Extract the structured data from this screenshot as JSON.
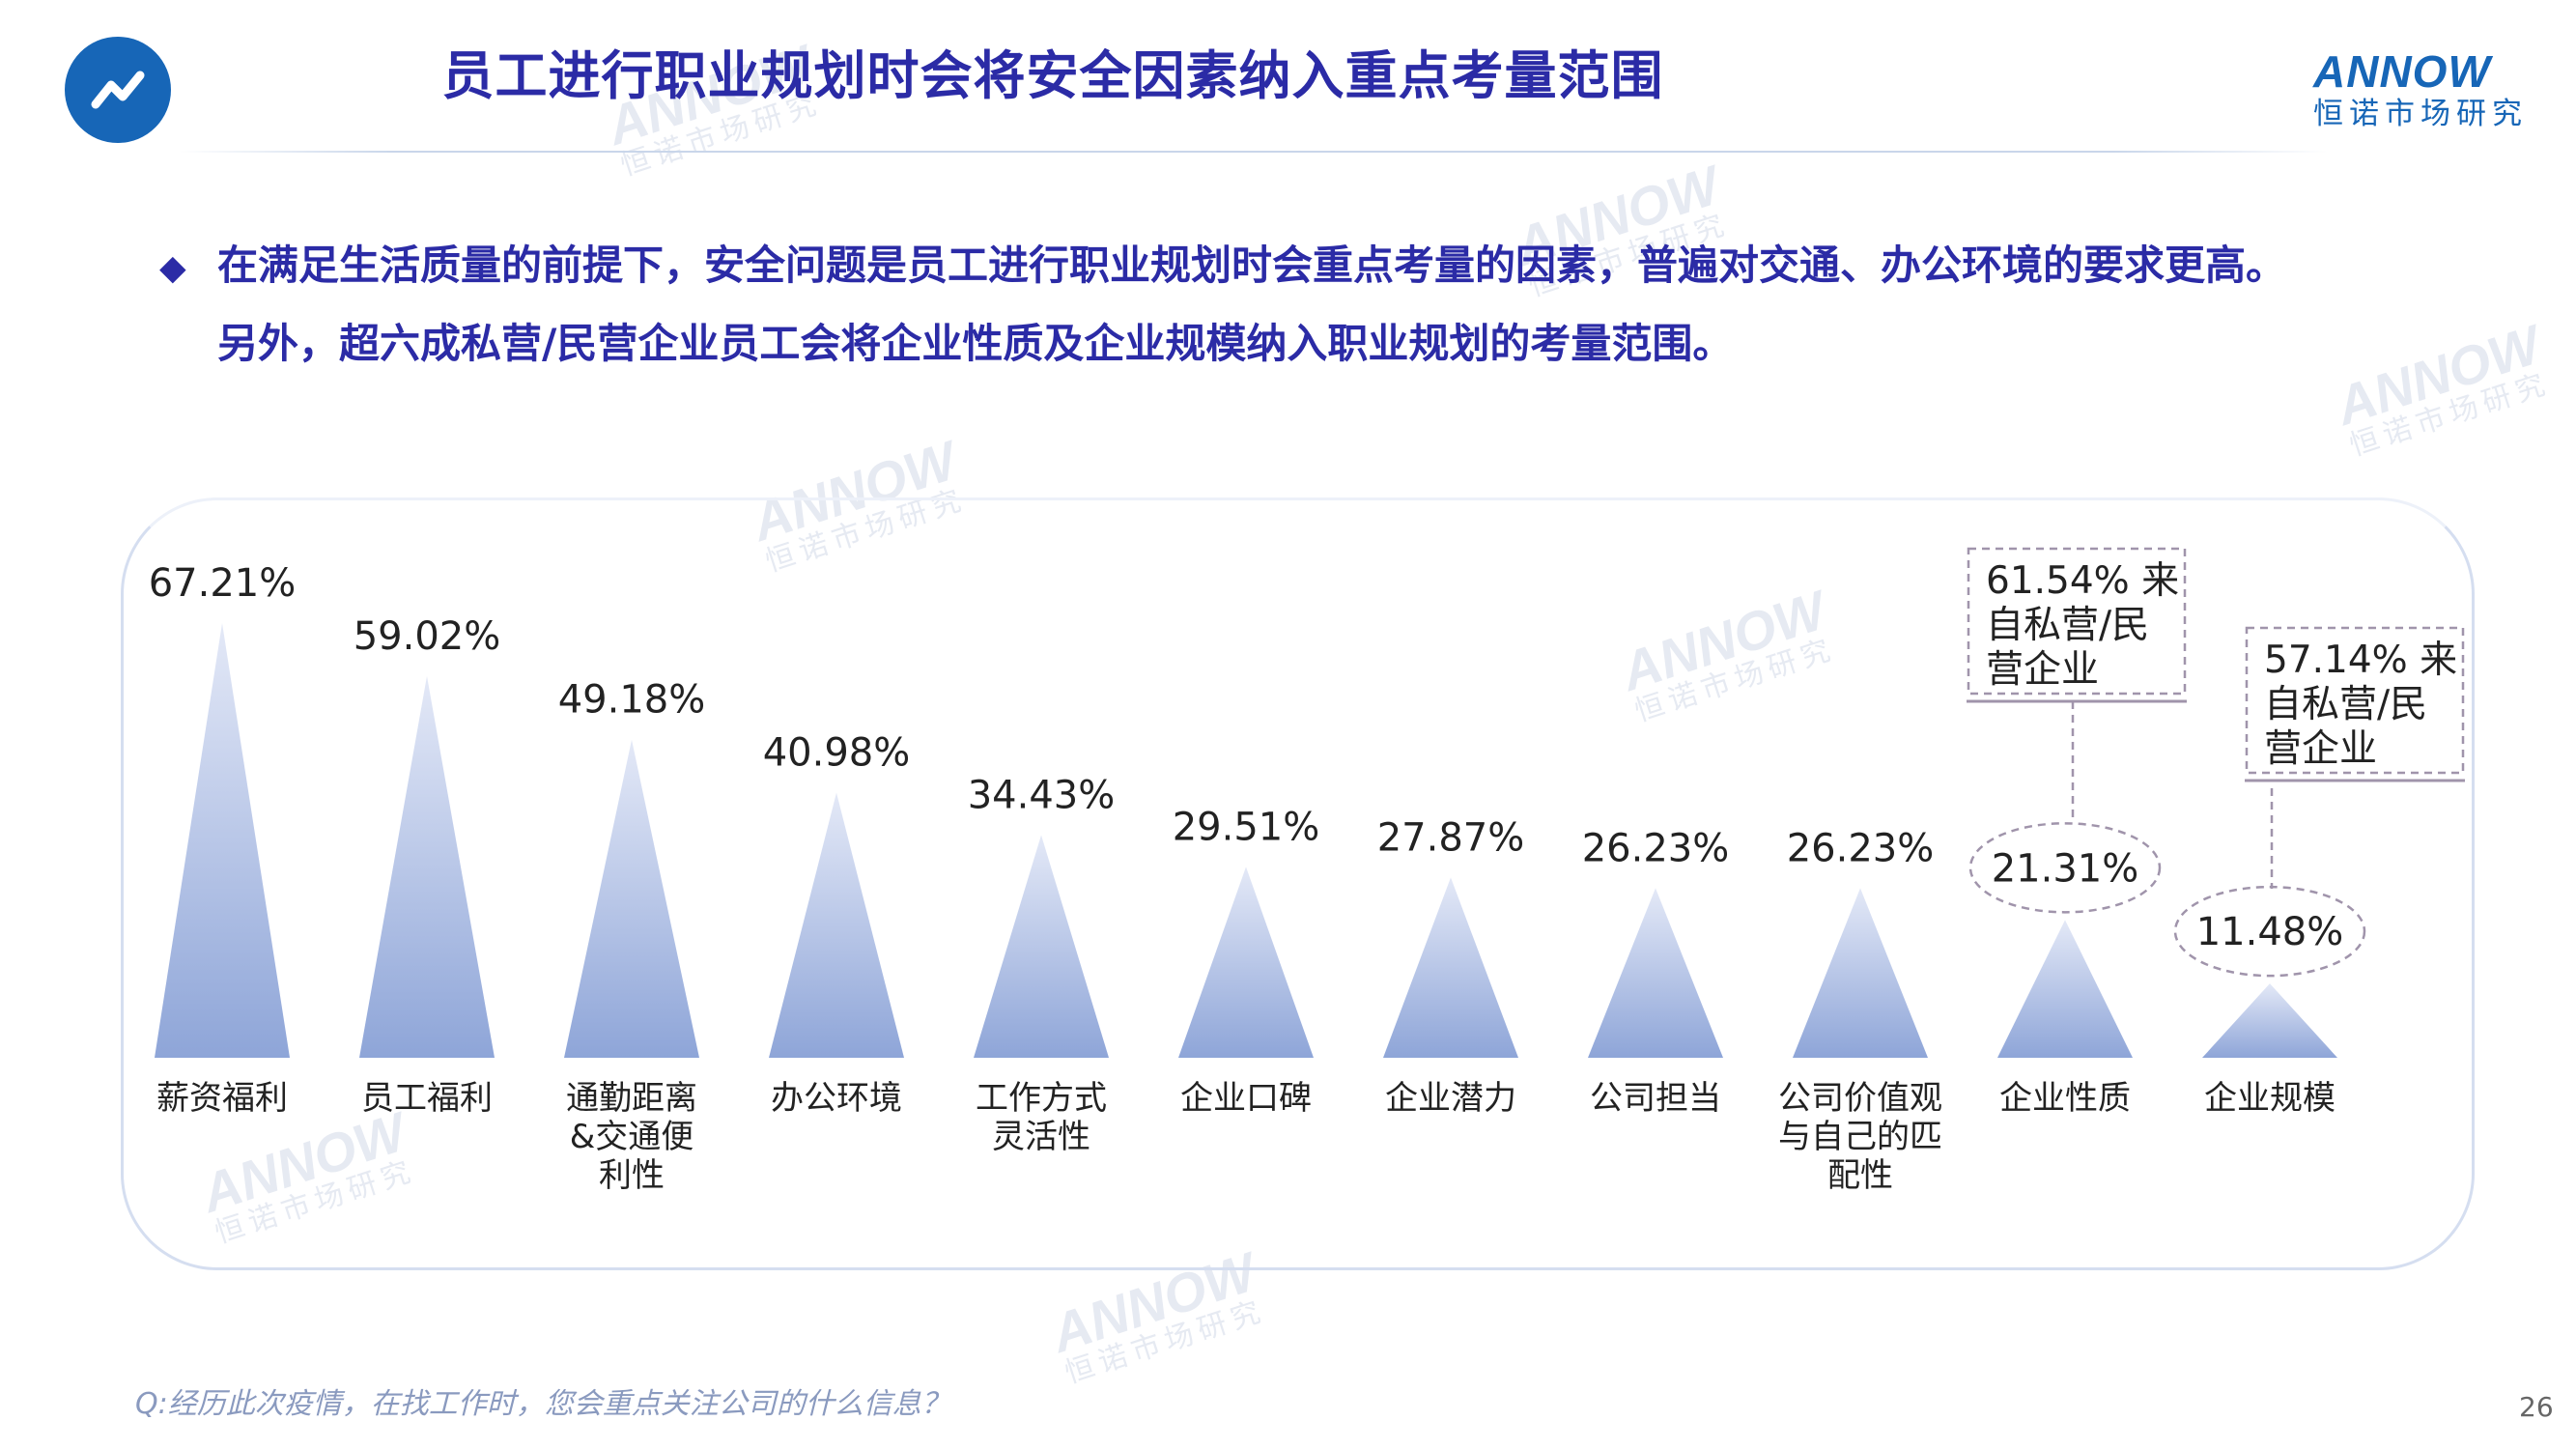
{
  "header": {
    "title": "员工进行职业规划时会将安全因素纳入重点考量范围",
    "trend_icon": "trend-line-icon",
    "brand": {
      "name": "ANNOW",
      "sub": "恒诺市场研究"
    }
  },
  "bullets": {
    "marker": "◆",
    "line1": "在满足生活质量的前提下，安全问题是员工进行职业规划时会重点考量的因素，普遍对交通、办公环境的要求更高。",
    "line2": "另外，超六成私营/民营企业员工会将企业性质及企业规模纳入职业规划的考量范围。"
  },
  "chart_data": {
    "type": "bar",
    "mark_shape": "triangle",
    "categories": [
      "薪资福利",
      "员工福利",
      "通勤距离&交通便利性",
      "办公环境",
      "工作方式灵活性",
      "企业口碑",
      "企业潜力",
      "公司担当",
      "公司价值观与自己的匹配性",
      "企业性质",
      "企业规模"
    ],
    "category_lines": [
      [
        "薪资福利"
      ],
      [
        "员工福利"
      ],
      [
        "通勤距离",
        "&交通便",
        "利性"
      ],
      [
        "办公环境"
      ],
      [
        "工作方式",
        "灵活性"
      ],
      [
        "企业口碑"
      ],
      [
        "企业潜力"
      ],
      [
        "公司担当"
      ],
      [
        "公司价值观",
        "与自己的匹",
        "配性"
      ],
      [
        "企业性质"
      ],
      [
        "企业规模"
      ]
    ],
    "values": [
      67.21,
      59.02,
      49.18,
      40.98,
      34.43,
      29.51,
      27.87,
      26.23,
      26.23,
      21.31,
      11.48
    ],
    "value_labels": [
      "67.21%",
      "59.02%",
      "49.18%",
      "40.98%",
      "34.43%",
      "29.51%",
      "27.87%",
      "26.23%",
      "26.23%",
      "21.31%",
      "11.48%"
    ],
    "unit": "%",
    "ylim": [
      0,
      70
    ],
    "grid": false,
    "highlighted_indices": [
      9,
      10
    ],
    "annotations": [
      {
        "category_index": 9,
        "lines": [
          "61.54% 来",
          "自私营/民",
          "营企业"
        ]
      },
      {
        "category_index": 10,
        "lines": [
          "57.14% 来",
          "自私营/民",
          "营企业"
        ]
      }
    ],
    "colors": {
      "bar_top": "#e4e9f7",
      "bar_bottom": "#8ea5d8",
      "text": "#222222",
      "callout": "#a094ab"
    }
  },
  "footer": {
    "question": "Q:经历此次疫情，在找工作时，您会重点关注公司的什么信息？",
    "page_number": "26"
  },
  "watermark": {
    "brand": "ANNOW",
    "sub": "恒诺市场研究"
  },
  "colors": {
    "title": "#2b2ba6",
    "accent": "#1766b7",
    "question": "#8a9abf"
  }
}
